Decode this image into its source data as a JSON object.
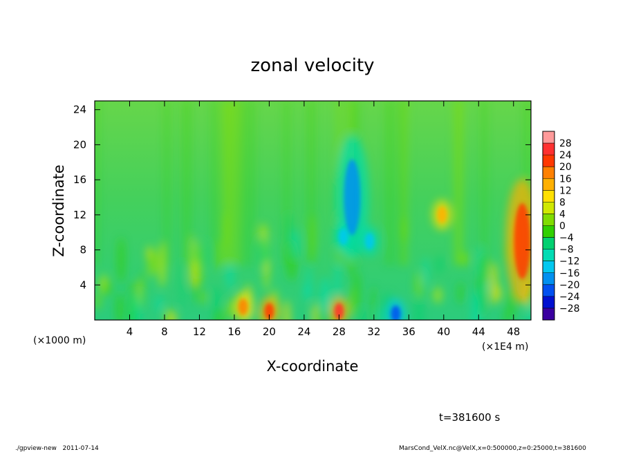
{
  "chart_data": {
    "type": "heatmap",
    "title": "zonal velocity",
    "xlabel": "X-coordinate",
    "ylabel": "Z-coordinate",
    "x_unit": "(×1E4 m)",
    "y_unit": "(×1000 m)",
    "xlim": [
      0,
      50
    ],
    "ylim": [
      0,
      25
    ],
    "x_ticks": [
      "4",
      "8",
      "12",
      "16",
      "20",
      "24",
      "28",
      "32",
      "36",
      "40",
      "44",
      "48"
    ],
    "y_ticks": [
      "4",
      "8",
      "12",
      "16",
      "20",
      "24"
    ],
    "colorbar": {
      "levels": [
        "28",
        "24",
        "20",
        "16",
        "12",
        "8",
        "4",
        "0",
        "−4",
        "−8",
        "−12",
        "−16",
        "−20",
        "−24",
        "−28"
      ],
      "colors": [
        "#ff9a9a",
        "#ff3030",
        "#ff3800",
        "#ff8000",
        "#ffb000",
        "#ffe000",
        "#d0e800",
        "#80dc00",
        "#30d000",
        "#00d070",
        "#00dcb4",
        "#00c8f0",
        "#0090f0",
        "#0050f0",
        "#0010d0",
        "#3a00a0"
      ]
    },
    "features": [
      {
        "x": 29.5,
        "z": 14,
        "value": -18
      },
      {
        "x": 28.5,
        "z": 9.5,
        "value": -14
      },
      {
        "x": 31.5,
        "z": 9,
        "value": -16
      },
      {
        "x": 28,
        "z": 1,
        "value": 24
      },
      {
        "x": 20,
        "z": 1,
        "value": 22
      },
      {
        "x": 17,
        "z": 1.5,
        "value": 18
      },
      {
        "x": 34.5,
        "z": 0.7,
        "value": -24
      },
      {
        "x": 49,
        "z": 9,
        "value": 20
      },
      {
        "x": 39.8,
        "z": 12,
        "value": 14
      }
    ]
  },
  "time_label": "t=381600 s",
  "footer_left": "./gpview-new   2011-07-14",
  "footer_right": "MarsCond_VelX.nc@VelX,x=0:500000,z=0:25000,t=381600"
}
